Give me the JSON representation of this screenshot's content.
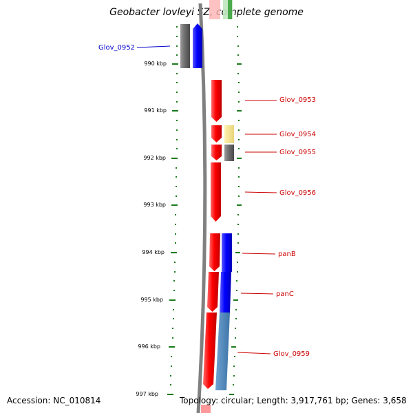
{
  "title": "Geobacter lovleyi SZ, complete genome",
  "accession_text": "Accession: NC_010814",
  "summary_text": "Topology: circular; Length: 3,917,761 bp; Genes: 3,658",
  "ticks": [
    "990 kbp",
    "991 kbp",
    "992 kbp",
    "993 kbp",
    "994 kbp",
    "995 kbp",
    "996 kbp",
    "997 kbp"
  ],
  "genes": [
    {
      "name": "Glov_0952",
      "label_color": "#0000cc"
    },
    {
      "name": "Glov_0953",
      "label_color": "#cc0000"
    },
    {
      "name": "Glov_0954",
      "label_color": "#cc0000"
    },
    {
      "name": "Glov_0955",
      "label_color": "#cc0000"
    },
    {
      "name": "Glov_0956",
      "label_color": "#cc0000"
    },
    {
      "name": "panB",
      "label_color": "#cc0000"
    },
    {
      "name": "panC",
      "label_color": "#cc0000"
    },
    {
      "name": "Glov_0959",
      "label_color": "#cc0000"
    }
  ],
  "colors": {
    "forward_cds": "#ff0000",
    "reverse_cds": "#0000ff",
    "gray_cds": "#666666",
    "yellow_feature": "#f0e08a",
    "steelblue_feature": "#4a86b8",
    "backbone": "#808080",
    "dotted_track": "#1a7a1a"
  }
}
